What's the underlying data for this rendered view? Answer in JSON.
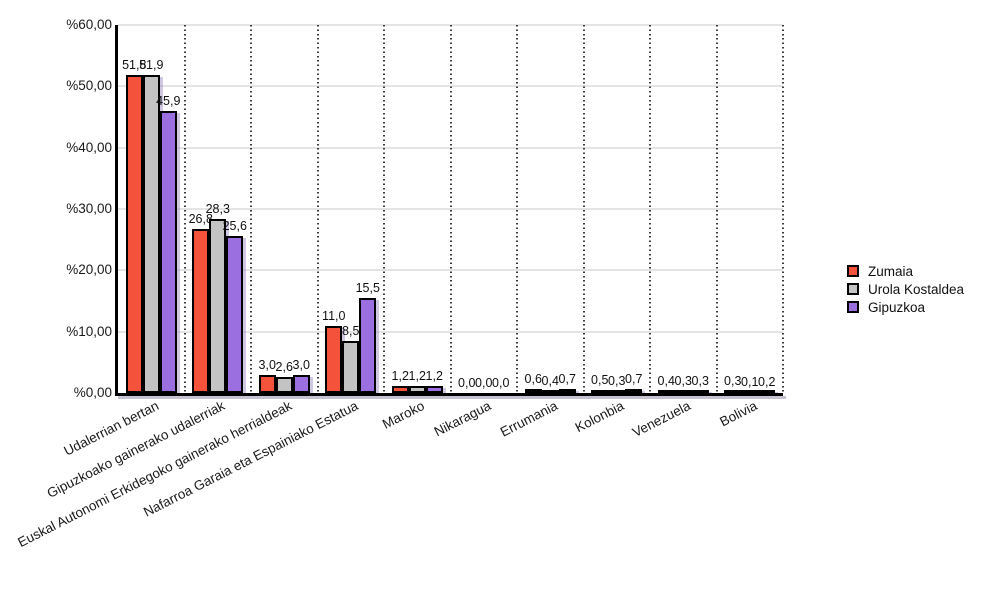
{
  "chart_data": {
    "type": "bar",
    "title": "",
    "xlabel": "",
    "ylabel": "",
    "ylim": [
      0,
      60
    ],
    "grid": true,
    "legend_position": "right",
    "y_ticks": [
      "%60,00",
      "%50,00",
      "%40,00",
      "%30,00",
      "%20,00",
      "%10,00",
      "%0,00"
    ],
    "y_tick_values": [
      60,
      50,
      40,
      30,
      20,
      10,
      0
    ],
    "categories": [
      "Udalerrian bertan",
      "Gipuzkoako gainerako udalerriak",
      "Euskal Autonomi Erkidegoko gainerako herrialdeak",
      "Nafarroa Garaia eta Espainiako Estatua",
      "Maroko",
      "Nikaragua",
      "Errumania",
      "Kolonbia",
      "Venezuela",
      "Bolivia"
    ],
    "series": [
      {
        "name": "Zumaia",
        "color": "#F5523B",
        "values": [
          51.8,
          26.8,
          3.0,
          11.0,
          1.2,
          0.0,
          0.6,
          0.5,
          0.4,
          0.3
        ],
        "labels": [
          "51,8",
          "26,8",
          "3,0",
          "11,0",
          "1,2",
          "0,0",
          "0,6",
          "0,5",
          "0,4",
          "0,3"
        ]
      },
      {
        "name": "Urola Kostaldea",
        "color": "#C3C3C3",
        "values": [
          51.9,
          28.3,
          2.6,
          8.5,
          1.2,
          0.0,
          0.4,
          0.3,
          0.3,
          0.1
        ],
        "labels": [
          "51,9",
          "28,3",
          "2,6",
          "8,5",
          "1,2",
          "0,0",
          "0,4",
          "0,3",
          "0,3",
          "0,1"
        ]
      },
      {
        "name": "Gipuzkoa",
        "color": "#9B6FE0",
        "values": [
          45.9,
          25.6,
          3.0,
          15.5,
          1.2,
          0.0,
          0.7,
          0.7,
          0.3,
          0.2
        ],
        "labels": [
          "45,9",
          "25,6",
          "3,0",
          "15,5",
          "1,2",
          "0,0",
          "0,7",
          "0,7",
          "0,3",
          "0,2"
        ]
      }
    ],
    "colors": {
      "bar_border": "#000000",
      "gridline": "#E4E4E4",
      "separator": "#3A3A3A",
      "axis": "#000000",
      "bar_shadow": "rgba(150,132,194,0.45)"
    }
  }
}
